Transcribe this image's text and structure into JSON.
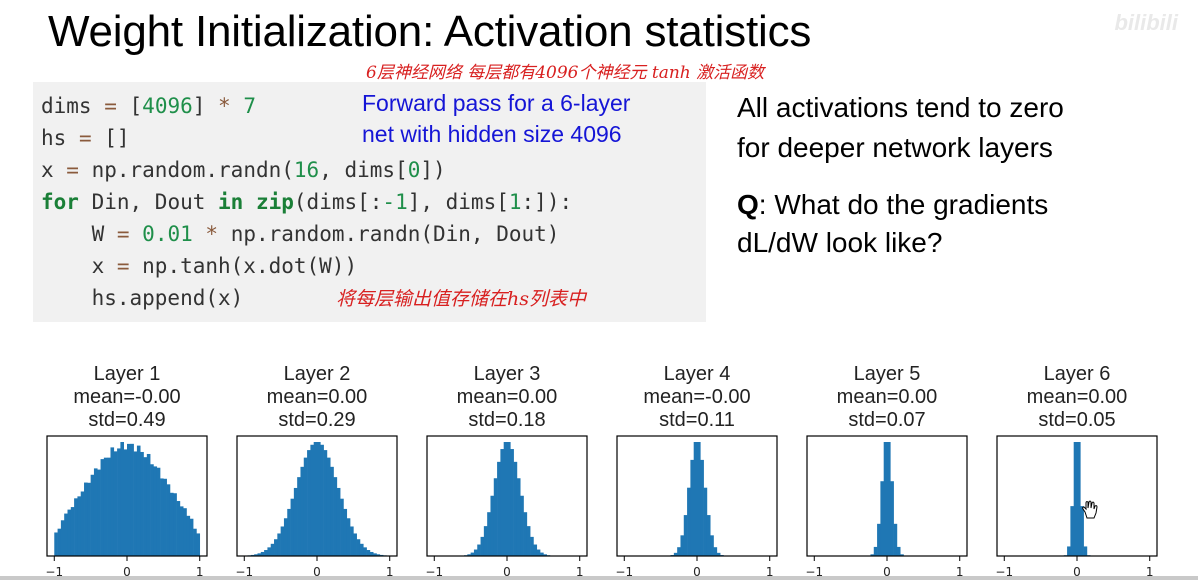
{
  "title": "Weight Initialization: Activation statistics",
  "watermark": "bilibili",
  "code_lines": [
    [
      [
        "dims ",
        ""
      ],
      [
        "=",
        "op"
      ],
      [
        " [",
        ""
      ],
      [
        "4096",
        "num"
      ],
      [
        "] ",
        ""
      ],
      [
        "*",
        "op"
      ],
      [
        " ",
        ""
      ],
      [
        "7",
        "num"
      ]
    ],
    [
      [
        "hs ",
        ""
      ],
      [
        "=",
        "op"
      ],
      [
        " []",
        ""
      ]
    ],
    [
      [
        "x ",
        ""
      ],
      [
        "=",
        "op"
      ],
      [
        " np.random.randn(",
        ""
      ],
      [
        "16",
        "num"
      ],
      [
        ", dims[",
        ""
      ],
      [
        "0",
        "num"
      ],
      [
        "])",
        ""
      ]
    ],
    [
      [
        "for",
        "kw"
      ],
      [
        " Din, Dout ",
        ""
      ],
      [
        "in",
        "kw"
      ],
      [
        " ",
        ""
      ],
      [
        "zip",
        "kw"
      ],
      [
        "(dims[:",
        ""
      ],
      [
        "-1",
        "num"
      ],
      [
        "], dims[",
        ""
      ],
      [
        "1",
        "num"
      ],
      [
        ":]):",
        ""
      ]
    ],
    [
      [
        "    W ",
        ""
      ],
      [
        "=",
        "op"
      ],
      [
        " ",
        ""
      ],
      [
        "0.01",
        "num"
      ],
      [
        " ",
        ""
      ],
      [
        "*",
        "op"
      ],
      [
        " np.random.randn(Din, Dout)",
        ""
      ]
    ],
    [
      [
        "    x ",
        ""
      ],
      [
        "=",
        "op"
      ],
      [
        " np.tanh(x.dot(W))",
        ""
      ]
    ],
    [
      [
        "    hs.append(x)",
        ""
      ]
    ]
  ],
  "code_note": {
    "line1": "Forward pass for a 6-layer",
    "line2": "net with hidden size 4096"
  },
  "handwritten": {
    "top": "6层神经网络  每层都有4096个神经元  tanh 激活函数",
    "bottom": "将每层输出值存储在hs列表中"
  },
  "summary": {
    "line1": "All activations tend to zero",
    "line2": "for deeper network layers"
  },
  "question": {
    "label": "Q",
    "line1": ": What do the gradients",
    "line2": "dL/dW look like?"
  },
  "colors": {
    "bar": "#1f77b4",
    "note": "#1515d6",
    "hand": "#d82020"
  },
  "chart_data": [
    {
      "type": "histogram",
      "title": "Layer 1",
      "mean_label": "mean=-0.00",
      "std_label": "std=0.49",
      "mean": 0.0,
      "std": 0.49,
      "xlim": [
        -1.1,
        1.1
      ],
      "xticks": [
        "−1",
        "0",
        "1"
      ],
      "shape": "saturated"
    },
    {
      "type": "histogram",
      "title": "Layer 2",
      "mean_label": "mean=0.00",
      "std_label": "std=0.29",
      "mean": 0.0,
      "std": 0.29,
      "xlim": [
        -1.1,
        1.1
      ],
      "xticks": [
        "−1",
        "0",
        "1"
      ],
      "shape": "normal"
    },
    {
      "type": "histogram",
      "title": "Layer 3",
      "mean_label": "mean=0.00",
      "std_label": "std=0.18",
      "mean": 0.0,
      "std": 0.18,
      "xlim": [
        -1.1,
        1.1
      ],
      "xticks": [
        "−1",
        "0",
        "1"
      ],
      "shape": "normal"
    },
    {
      "type": "histogram",
      "title": "Layer 4",
      "mean_label": "mean=-0.00",
      "std_label": "std=0.11",
      "mean": 0.0,
      "std": 0.11,
      "xlim": [
        -1.1,
        1.1
      ],
      "xticks": [
        "−1",
        "0",
        "1"
      ],
      "shape": "normal"
    },
    {
      "type": "histogram",
      "title": "Layer 5",
      "mean_label": "mean=0.00",
      "std_label": "std=0.07",
      "mean": 0.0,
      "std": 0.07,
      "xlim": [
        -1.1,
        1.1
      ],
      "xticks": [
        "−1",
        "0",
        "1"
      ],
      "shape": "normal"
    },
    {
      "type": "histogram",
      "title": "Layer 6",
      "mean_label": "mean=0.00",
      "std_label": "std=0.05",
      "mean": 0.0,
      "std": 0.05,
      "xlim": [
        -1.1,
        1.1
      ],
      "xticks": [
        "−1",
        "0",
        "1"
      ],
      "shape": "normal"
    }
  ]
}
